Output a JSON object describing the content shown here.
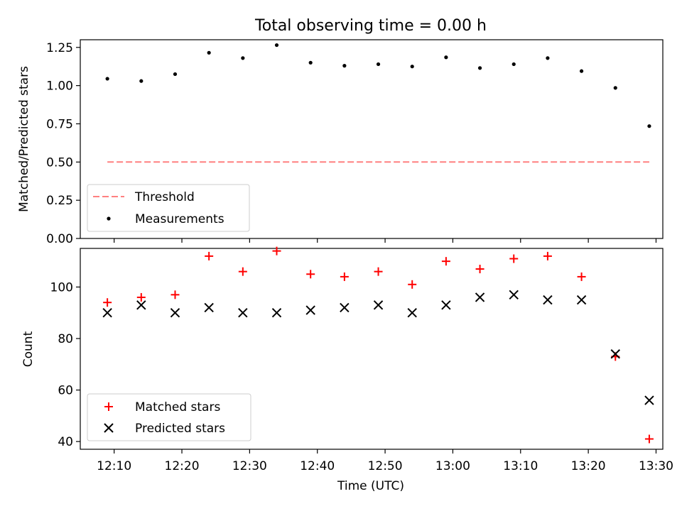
{
  "title": "Total observing time = 0.00 h",
  "chart_data": [
    {
      "type": "scatter",
      "ylabel": "Matched/Predicted stars",
      "xlabel": "",
      "ylim": [
        0,
        1.3
      ],
      "y_ticks": [
        0.0,
        0.25,
        0.5,
        0.75,
        1.0,
        1.25
      ],
      "y_tick_labels": [
        "0.00",
        "0.25",
        "0.50",
        "0.75",
        "1.00",
        "1.25"
      ],
      "x": [
        "12:09",
        "12:14",
        "12:19",
        "12:24",
        "12:29",
        "12:34",
        "12:39",
        "12:44",
        "12:49",
        "12:54",
        "12:59",
        "13:04",
        "13:09",
        "13:14",
        "13:19",
        "13:24",
        "13:29"
      ],
      "series": [
        {
          "name": "Measurements",
          "values": [
            1.045,
            1.03,
            1.075,
            1.215,
            1.18,
            1.265,
            1.15,
            1.13,
            1.14,
            1.125,
            1.185,
            1.115,
            1.14,
            1.18,
            1.095,
            0.985,
            0.735
          ]
        }
      ],
      "threshold": {
        "name": "Threshold",
        "value": 0.5,
        "x_start": "12:09",
        "x_end": "13:29"
      },
      "legend_placement": "lower-left"
    },
    {
      "type": "scatter",
      "ylabel": "Count",
      "xlabel": "Time (UTC)",
      "ylim": [
        37,
        115
      ],
      "y_ticks": [
        40,
        60,
        80,
        100
      ],
      "y_tick_labels": [
        "40",
        "60",
        "80",
        "100"
      ],
      "x_ticks": [
        "12:10",
        "12:20",
        "12:30",
        "12:40",
        "12:50",
        "13:00",
        "13:10",
        "13:20",
        "13:30"
      ],
      "x": [
        "12:09",
        "12:14",
        "12:19",
        "12:24",
        "12:29",
        "12:34",
        "12:39",
        "12:44",
        "12:49",
        "12:54",
        "12:59",
        "13:04",
        "13:09",
        "13:14",
        "13:19",
        "13:24",
        "13:29"
      ],
      "series": [
        {
          "name": "Matched stars",
          "values": [
            94,
            96,
            97,
            112,
            106,
            114,
            105,
            104,
            106,
            101,
            110,
            107,
            111,
            112,
            104,
            73,
            41
          ]
        },
        {
          "name": "Predicted stars",
          "values": [
            90,
            93,
            90,
            92,
            90,
            90,
            91,
            92,
            93,
            90,
            93,
            96,
            97,
            95,
            95,
            74,
            56
          ]
        }
      ],
      "legend_placement": "lower-left"
    }
  ],
  "colors": {
    "threshold": "#ff8080",
    "measurements": "#000000",
    "matched": "#ff0000",
    "predicted": "#000000"
  }
}
